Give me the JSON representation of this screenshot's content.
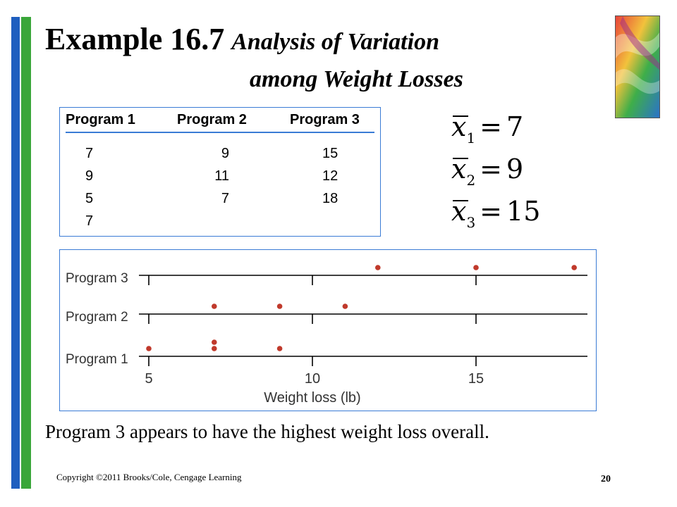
{
  "slide": {
    "title_main": "Example 16.7",
    "title_italic_line1": "Analysis of Variation",
    "title_italic_line2": "among Weight Losses",
    "caption": "Program 3 appears to have the highest weight loss overall.",
    "copyright": "Copyright ©2011 Brooks/Cole, Cengage Learning",
    "page_number": "20",
    "accent_colors": {
      "blue": "#1f5fbf",
      "green": "#3aa63a",
      "frame": "#3a7bd5",
      "dot": "#c0392b"
    }
  },
  "table": {
    "headers": [
      "Program 1",
      "Program 2",
      "Program 3"
    ],
    "columns": [
      [
        "7",
        "9",
        "5",
        "7"
      ],
      [
        "9",
        "11",
        "7"
      ],
      [
        "15",
        "12",
        "18"
      ]
    ]
  },
  "means": [
    {
      "var": "x",
      "sub": "1",
      "eq": "=",
      "value": "7"
    },
    {
      "var": "x",
      "sub": "2",
      "eq": "=",
      "value": "9"
    },
    {
      "var": "x",
      "sub": "3",
      "eq": "=",
      "value": "15"
    }
  ],
  "chart_data": {
    "type": "scatter",
    "xlabel": "Weight loss (lb)",
    "xlim": [
      5,
      18.5
    ],
    "xticks": [
      5,
      10,
      15
    ],
    "tick_labels": [
      "5",
      "10",
      "15"
    ],
    "grid": false,
    "series": [
      {
        "name": "Program 3",
        "values": [
          15,
          12,
          18
        ]
      },
      {
        "name": "Program 2",
        "values": [
          9,
          11,
          7
        ]
      },
      {
        "name": "Program 1",
        "values": [
          7,
          9,
          5,
          7
        ]
      }
    ]
  }
}
